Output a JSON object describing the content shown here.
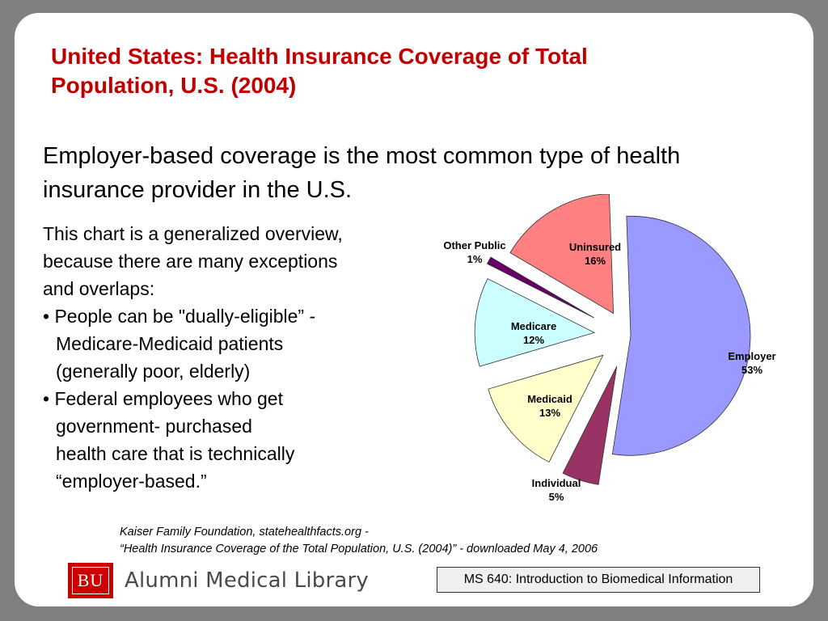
{
  "title": {
    "line1": "United States: Health Insurance Coverage of Total",
    "line2": "Population, U.S. (2004)"
  },
  "subtitle": {
    "line1": "Employer-based coverage is the most common type of health",
    "line2": "insurance provider in the U.S."
  },
  "body": {
    "lines": [
      "This chart is a generalized overview,",
      "because there are many exceptions",
      "and overlaps:",
      "• People can be \"dually-eligible” -",
      "Medicare-Medicaid patients",
      "(generally poor, elderly)",
      "• Federal employees who get",
      "government- purchased",
      "health care that is technically",
      "“employer-based.”"
    ]
  },
  "chart_data": {
    "type": "pie",
    "style": "exploded pie",
    "slices": [
      {
        "label": "Employer",
        "value": 53,
        "value_label": "53%",
        "color": "#9999ff"
      },
      {
        "label": "Individual",
        "value": 5,
        "value_label": "5%",
        "color": "#993366"
      },
      {
        "label": "Medicaid",
        "value": 13,
        "value_label": "13%",
        "color": "#ffffcc"
      },
      {
        "label": "Medicare",
        "value": 12,
        "value_label": "12%",
        "color": "#ccffff"
      },
      {
        "label": "Other Public",
        "value": 1,
        "value_label": "1%",
        "color": "#660066"
      },
      {
        "label": "Uninsured",
        "value": 16,
        "value_label": "16%",
        "color": "#ff8080"
      }
    ],
    "legend": "none",
    "labels": "category name and percent beside each slice"
  },
  "citation": {
    "line1": "Kaiser Family Foundation, statehealthfacts.org -",
    "line2": "“Health Insurance Coverage of the Total Population, U.S. (2004)” - downloaded May 4, 2006"
  },
  "logo": {
    "mark": "BU",
    "name": "Alumni Medical Library",
    "color": "#cc0000"
  },
  "course": "MS 640: Introduction to Biomedical Information",
  "colors": {
    "background": "#808080",
    "slide": "#ffffff",
    "title": "#c00000"
  }
}
